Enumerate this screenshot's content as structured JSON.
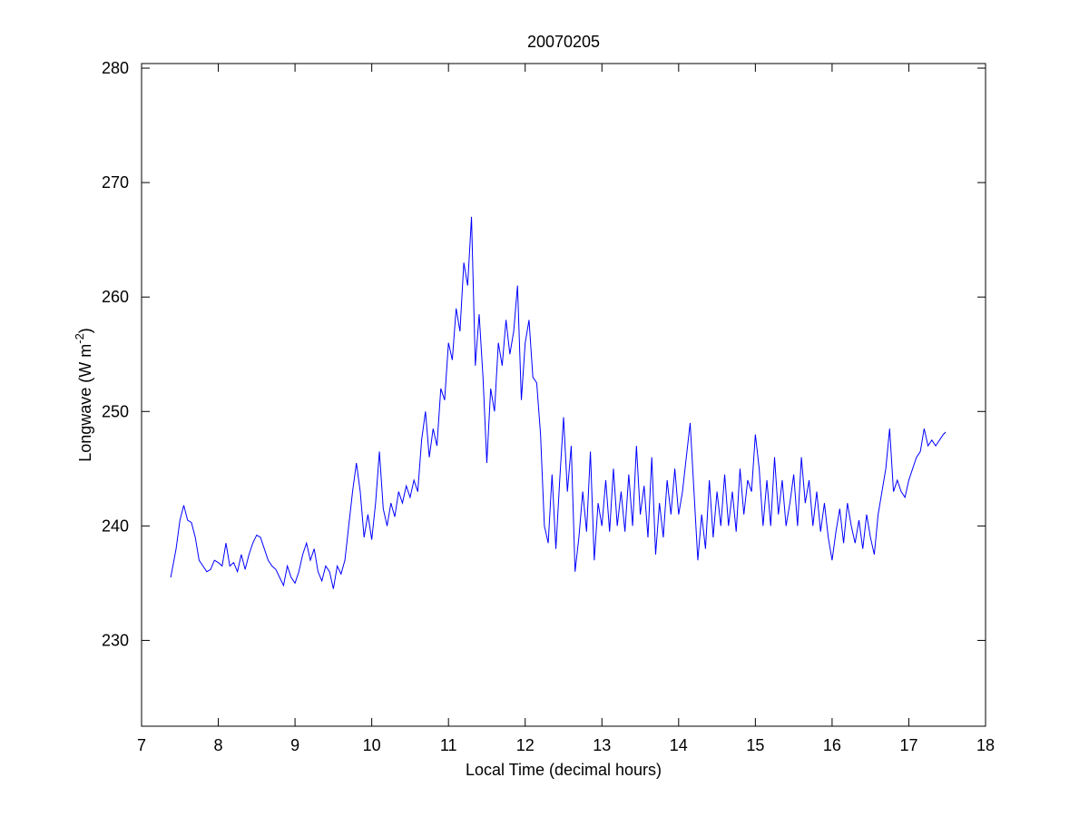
{
  "chart_data": {
    "type": "line",
    "title": "20070205",
    "xlabel": "Local Time (decimal hours)",
    "ylabel": {
      "text": "Longwave (W m",
      "sup": "-2",
      "tail": ")"
    },
    "color": "#0000ff",
    "xlim": [
      7,
      18
    ],
    "xticks": [
      7,
      8,
      9,
      10,
      11,
      12,
      13,
      14,
      15,
      16,
      17,
      18
    ],
    "ylim": [
      222.5,
      280.4
    ],
    "yticks": [
      230,
      240,
      250,
      260,
      270,
      280
    ],
    "x": [
      7.38,
      7.45,
      7.5,
      7.55,
      7.6,
      7.65,
      7.7,
      7.75,
      7.8,
      7.85,
      7.9,
      7.95,
      8.0,
      8.05,
      8.1,
      8.15,
      8.2,
      8.25,
      8.3,
      8.35,
      8.4,
      8.45,
      8.5,
      8.55,
      8.6,
      8.65,
      8.7,
      8.75,
      8.8,
      8.85,
      8.9,
      8.95,
      9.0,
      9.05,
      9.1,
      9.15,
      9.2,
      9.25,
      9.3,
      9.35,
      9.4,
      9.45,
      9.5,
      9.55,
      9.6,
      9.65,
      9.7,
      9.75,
      9.8,
      9.85,
      9.9,
      9.95,
      10.0,
      10.05,
      10.1,
      10.15,
      10.2,
      10.25,
      10.3,
      10.35,
      10.4,
      10.45,
      10.5,
      10.55,
      10.6,
      10.65,
      10.7,
      10.75,
      10.8,
      10.85,
      10.9,
      10.95,
      11.0,
      11.05,
      11.1,
      11.15,
      11.2,
      11.25,
      11.3,
      11.35,
      11.4,
      11.45,
      11.5,
      11.55,
      11.6,
      11.65,
      11.7,
      11.75,
      11.8,
      11.85,
      11.9,
      11.95,
      12.0,
      12.05,
      12.1,
      12.15,
      12.2,
      12.25,
      12.3,
      12.35,
      12.4,
      12.45,
      12.5,
      12.55,
      12.6,
      12.65,
      12.7,
      12.75,
      12.8,
      12.85,
      12.9,
      12.95,
      13.0,
      13.05,
      13.1,
      13.15,
      13.2,
      13.25,
      13.3,
      13.35,
      13.4,
      13.45,
      13.5,
      13.55,
      13.6,
      13.65,
      13.7,
      13.75,
      13.8,
      13.85,
      13.9,
      13.95,
      14.0,
      14.05,
      14.1,
      14.15,
      14.2,
      14.25,
      14.3,
      14.35,
      14.4,
      14.45,
      14.5,
      14.55,
      14.6,
      14.65,
      14.7,
      14.75,
      14.8,
      14.85,
      14.9,
      14.95,
      15.0,
      15.05,
      15.1,
      15.15,
      15.2,
      15.25,
      15.3,
      15.35,
      15.4,
      15.45,
      15.5,
      15.55,
      15.6,
      15.65,
      15.7,
      15.75,
      15.8,
      15.85,
      15.9,
      15.95,
      16.0,
      16.05,
      16.1,
      16.15,
      16.2,
      16.25,
      16.3,
      16.35,
      16.4,
      16.45,
      16.5,
      16.55,
      16.6,
      16.65,
      16.7,
      16.75,
      16.8,
      16.85,
      16.9,
      16.95,
      17.0,
      17.05,
      17.1,
      17.15,
      17.2,
      17.25,
      17.3,
      17.35,
      17.4,
      17.45,
      17.48
    ],
    "values": [
      235.5,
      238,
      240.5,
      241.8,
      240.5,
      240.3,
      239,
      237,
      236.5,
      236,
      236.2,
      237,
      236.8,
      236.5,
      238.5,
      236.5,
      236.8,
      236,
      237.5,
      236.2,
      237.5,
      238.5,
      239.2,
      239,
      238,
      237,
      236.5,
      236.2,
      235.5,
      234.8,
      236.5,
      235.5,
      235,
      236,
      237.5,
      238.5,
      237,
      238,
      236,
      235.2,
      236.5,
      236,
      234.5,
      236.5,
      235.8,
      237,
      240,
      243,
      245.5,
      243,
      239,
      241,
      238.8,
      242,
      246.5,
      241.5,
      240,
      242,
      240.8,
      243,
      242,
      243.5,
      242.5,
      244,
      243,
      247.5,
      250,
      246,
      248.5,
      247,
      252,
      251,
      256,
      254.5,
      259,
      257,
      263,
      261,
      267,
      254,
      258.5,
      253,
      245.5,
      252,
      250,
      256,
      254,
      258,
      255,
      257,
      261,
      251,
      256,
      258,
      253,
      252.5,
      248,
      240,
      238.5,
      244.5,
      238,
      244,
      249.5,
      243,
      247,
      236,
      239,
      243,
      239.5,
      246.5,
      237,
      242,
      240,
      244,
      239.5,
      245,
      240,
      243,
      239.5,
      244.5,
      240,
      247,
      241,
      243.5,
      239,
      246,
      237.5,
      242,
      239,
      244,
      241,
      245,
      241,
      243,
      246,
      249,
      243,
      237,
      241,
      238,
      244,
      239,
      243,
      240,
      244.5,
      240,
      243,
      239.5,
      245,
      241,
      244,
      243,
      248,
      245,
      240,
      244,
      240,
      246,
      241,
      244,
      240,
      242,
      244.5,
      240,
      246,
      242,
      244,
      240,
      243,
      239.5,
      242,
      239,
      237,
      239.5,
      241.5,
      238.5,
      242,
      240,
      238.5,
      240.5,
      238,
      241,
      239,
      237.5,
      241,
      243,
      245,
      248.5,
      243,
      244,
      243,
      242.5,
      244,
      245,
      246,
      246.5,
      248.5,
      247,
      247.5,
      247,
      247.5,
      248,
      248.2
    ]
  }
}
